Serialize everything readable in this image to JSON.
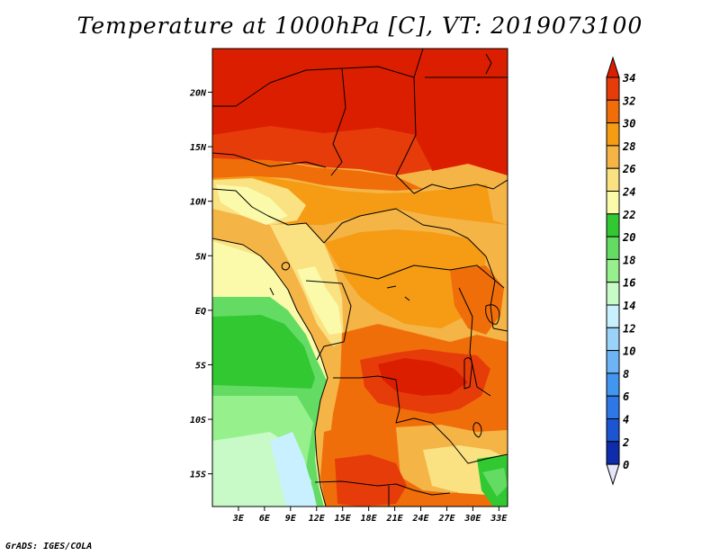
{
  "title": "Temperature at 1000hPa [C], VT: 2019073100",
  "credit": "GrADS: IGES/COLA",
  "map": {
    "lon_range": [
      0,
      34
    ],
    "lat_range": [
      -18,
      24
    ],
    "lat_ticks": [
      {
        "lat": 20,
        "label": "20N"
      },
      {
        "lat": 15,
        "label": "15N"
      },
      {
        "lat": 10,
        "label": "10N"
      },
      {
        "lat": 5,
        "label": "5N"
      },
      {
        "lat": 0,
        "label": "EQ"
      },
      {
        "lat": -5,
        "label": "5S"
      },
      {
        "lat": -10,
        "label": "10S"
      },
      {
        "lat": -15,
        "label": "15S"
      }
    ],
    "lon_ticks": [
      {
        "lon": 3,
        "label": "3E"
      },
      {
        "lon": 6,
        "label": "6E"
      },
      {
        "lon": 9,
        "label": "9E"
      },
      {
        "lon": 12,
        "label": "12E"
      },
      {
        "lon": 15,
        "label": "15E"
      },
      {
        "lon": 18,
        "label": "18E"
      },
      {
        "lon": 21,
        "label": "21E"
      },
      {
        "lon": 24,
        "label": "24E"
      },
      {
        "lon": 27,
        "label": "27E"
      },
      {
        "lon": 30,
        "label": "30E"
      },
      {
        "lon": 33,
        "label": "33E"
      }
    ]
  },
  "colorbar": {
    "unit": "C",
    "levels": [
      "0",
      "2",
      "4",
      "6",
      "8",
      "10",
      "12",
      "14",
      "16",
      "18",
      "20",
      "22",
      "24",
      "26",
      "28",
      "30",
      "32",
      "34"
    ],
    "colors": [
      "#e6e6fa",
      "#0a0a78",
      "#0f2caa",
      "#1c55d2",
      "#2d78e6",
      "#4196f0",
      "#6eb4f5",
      "#9bd2fa",
      "#c8f0ff",
      "#c8fac8",
      "#96f08c",
      "#64dc64",
      "#32c832",
      "#fafaaa",
      "#fae182",
      "#f5b446",
      "#f59b14",
      "#f06e0a",
      "#e63c0a",
      "#dc1e00"
    ]
  }
}
